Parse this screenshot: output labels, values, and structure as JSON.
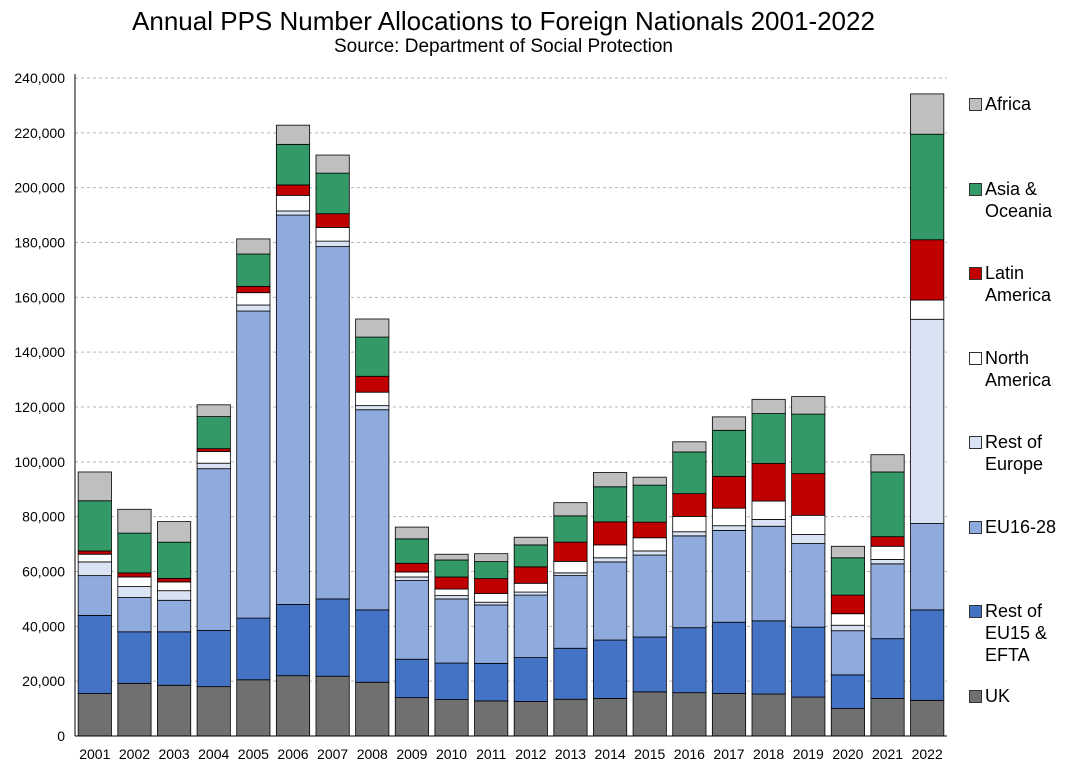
{
  "chart_data": {
    "type": "bar",
    "stacked": true,
    "title": "Annual PPS Number Allocations to Foreign Nationals 2001-2022",
    "subtitle": "Source: Department of Social Protection",
    "xlabel": "",
    "ylabel": "",
    "ylim": [
      0,
      240000
    ],
    "y_ticks": [
      0,
      20000,
      40000,
      60000,
      80000,
      100000,
      120000,
      140000,
      160000,
      180000,
      200000,
      220000,
      240000
    ],
    "y_tick_labels": [
      "0",
      "20,000",
      "40,000",
      "60,000",
      "80,000",
      "100,000",
      "120,000",
      "140,000",
      "160,000",
      "180,000",
      "200,000",
      "220,000",
      "240,000"
    ],
    "grid": true,
    "legend_position": "right",
    "categories": [
      "2001",
      "2002",
      "2003",
      "2004",
      "2005",
      "2006",
      "2007",
      "2008",
      "2009",
      "2010",
      "2011",
      "2012",
      "2013",
      "2014",
      "2015",
      "2016",
      "2017",
      "2018",
      "2019",
      "2020",
      "2021",
      "2022"
    ],
    "series": [
      {
        "name": "UK",
        "legend_label": "UK",
        "color": "#707070",
        "values": [
          15500,
          19200,
          18500,
          18000,
          20500,
          22000,
          21800,
          19600,
          14000,
          13300,
          12800,
          12600,
          13400,
          13700,
          16100,
          15800,
          15500,
          15300,
          14200,
          10000,
          13700,
          13000
        ]
      },
      {
        "name": "Rest of EU15 & EFTA",
        "legend_label": "Rest of\nEU15 &\nEFTA",
        "color": "#4472c4",
        "values": [
          28500,
          18800,
          19500,
          20500,
          22500,
          26000,
          28200,
          26400,
          14000,
          13300,
          13700,
          16000,
          18600,
          21300,
          20000,
          23700,
          26000,
          26700,
          25500,
          12300,
          21800,
          33000
        ]
      },
      {
        "name": "EU16-28",
        "legend_label": "EU16-28",
        "color": "#8faadc",
        "values": [
          14500,
          12500,
          11500,
          59000,
          112000,
          142000,
          128500,
          73000,
          28700,
          23400,
          21300,
          22800,
          26500,
          28500,
          29900,
          33500,
          33500,
          34500,
          30500,
          16100,
          27300,
          31500
        ]
      },
      {
        "name": "Rest of Europe",
        "legend_label": "Rest of\nEurope",
        "color": "#dae3f3",
        "values": [
          5000,
          4000,
          3500,
          2000,
          2200,
          1500,
          2000,
          1500,
          1300,
          1200,
          1000,
          1100,
          1000,
          1500,
          1500,
          1500,
          1700,
          2500,
          3300,
          2000,
          1600,
          74500
        ]
      },
      {
        "name": "North America",
        "legend_label": "North\nAmerica",
        "color": "#ffffff",
        "values": [
          2800,
          3500,
          3200,
          4300,
          4500,
          5700,
          5000,
          4900,
          1800,
          2400,
          3200,
          3200,
          4200,
          4700,
          4800,
          5600,
          6400,
          6700,
          7000,
          4200,
          4800,
          7000
        ]
      },
      {
        "name": "Latin America",
        "legend_label": "Latin\nAmerica",
        "color": "#c00000",
        "values": [
          1200,
          1500,
          1300,
          1000,
          2300,
          3800,
          5000,
          5800,
          3200,
          4400,
          5400,
          6000,
          7000,
          8400,
          5700,
          8300,
          11600,
          13700,
          15200,
          6800,
          3500,
          22000
        ]
      },
      {
        "name": "Asia & Oceania",
        "legend_label": "Asia &\nOceania",
        "color": "#339966",
        "values": [
          18300,
          14500,
          13200,
          11700,
          11800,
          14800,
          14800,
          14300,
          8900,
          6200,
          6200,
          8000,
          9600,
          12800,
          13500,
          15200,
          16800,
          18200,
          21700,
          13600,
          23600,
          38500
        ]
      },
      {
        "name": "Africa",
        "legend_label": "Africa",
        "color": "#bfbfbf",
        "values": [
          10500,
          8700,
          7500,
          4300,
          5500,
          7000,
          6600,
          6600,
          4300,
          2100,
          2900,
          2800,
          4800,
          5200,
          2900,
          3700,
          4900,
          5200,
          6400,
          4200,
          6300,
          14700
        ]
      }
    ]
  }
}
